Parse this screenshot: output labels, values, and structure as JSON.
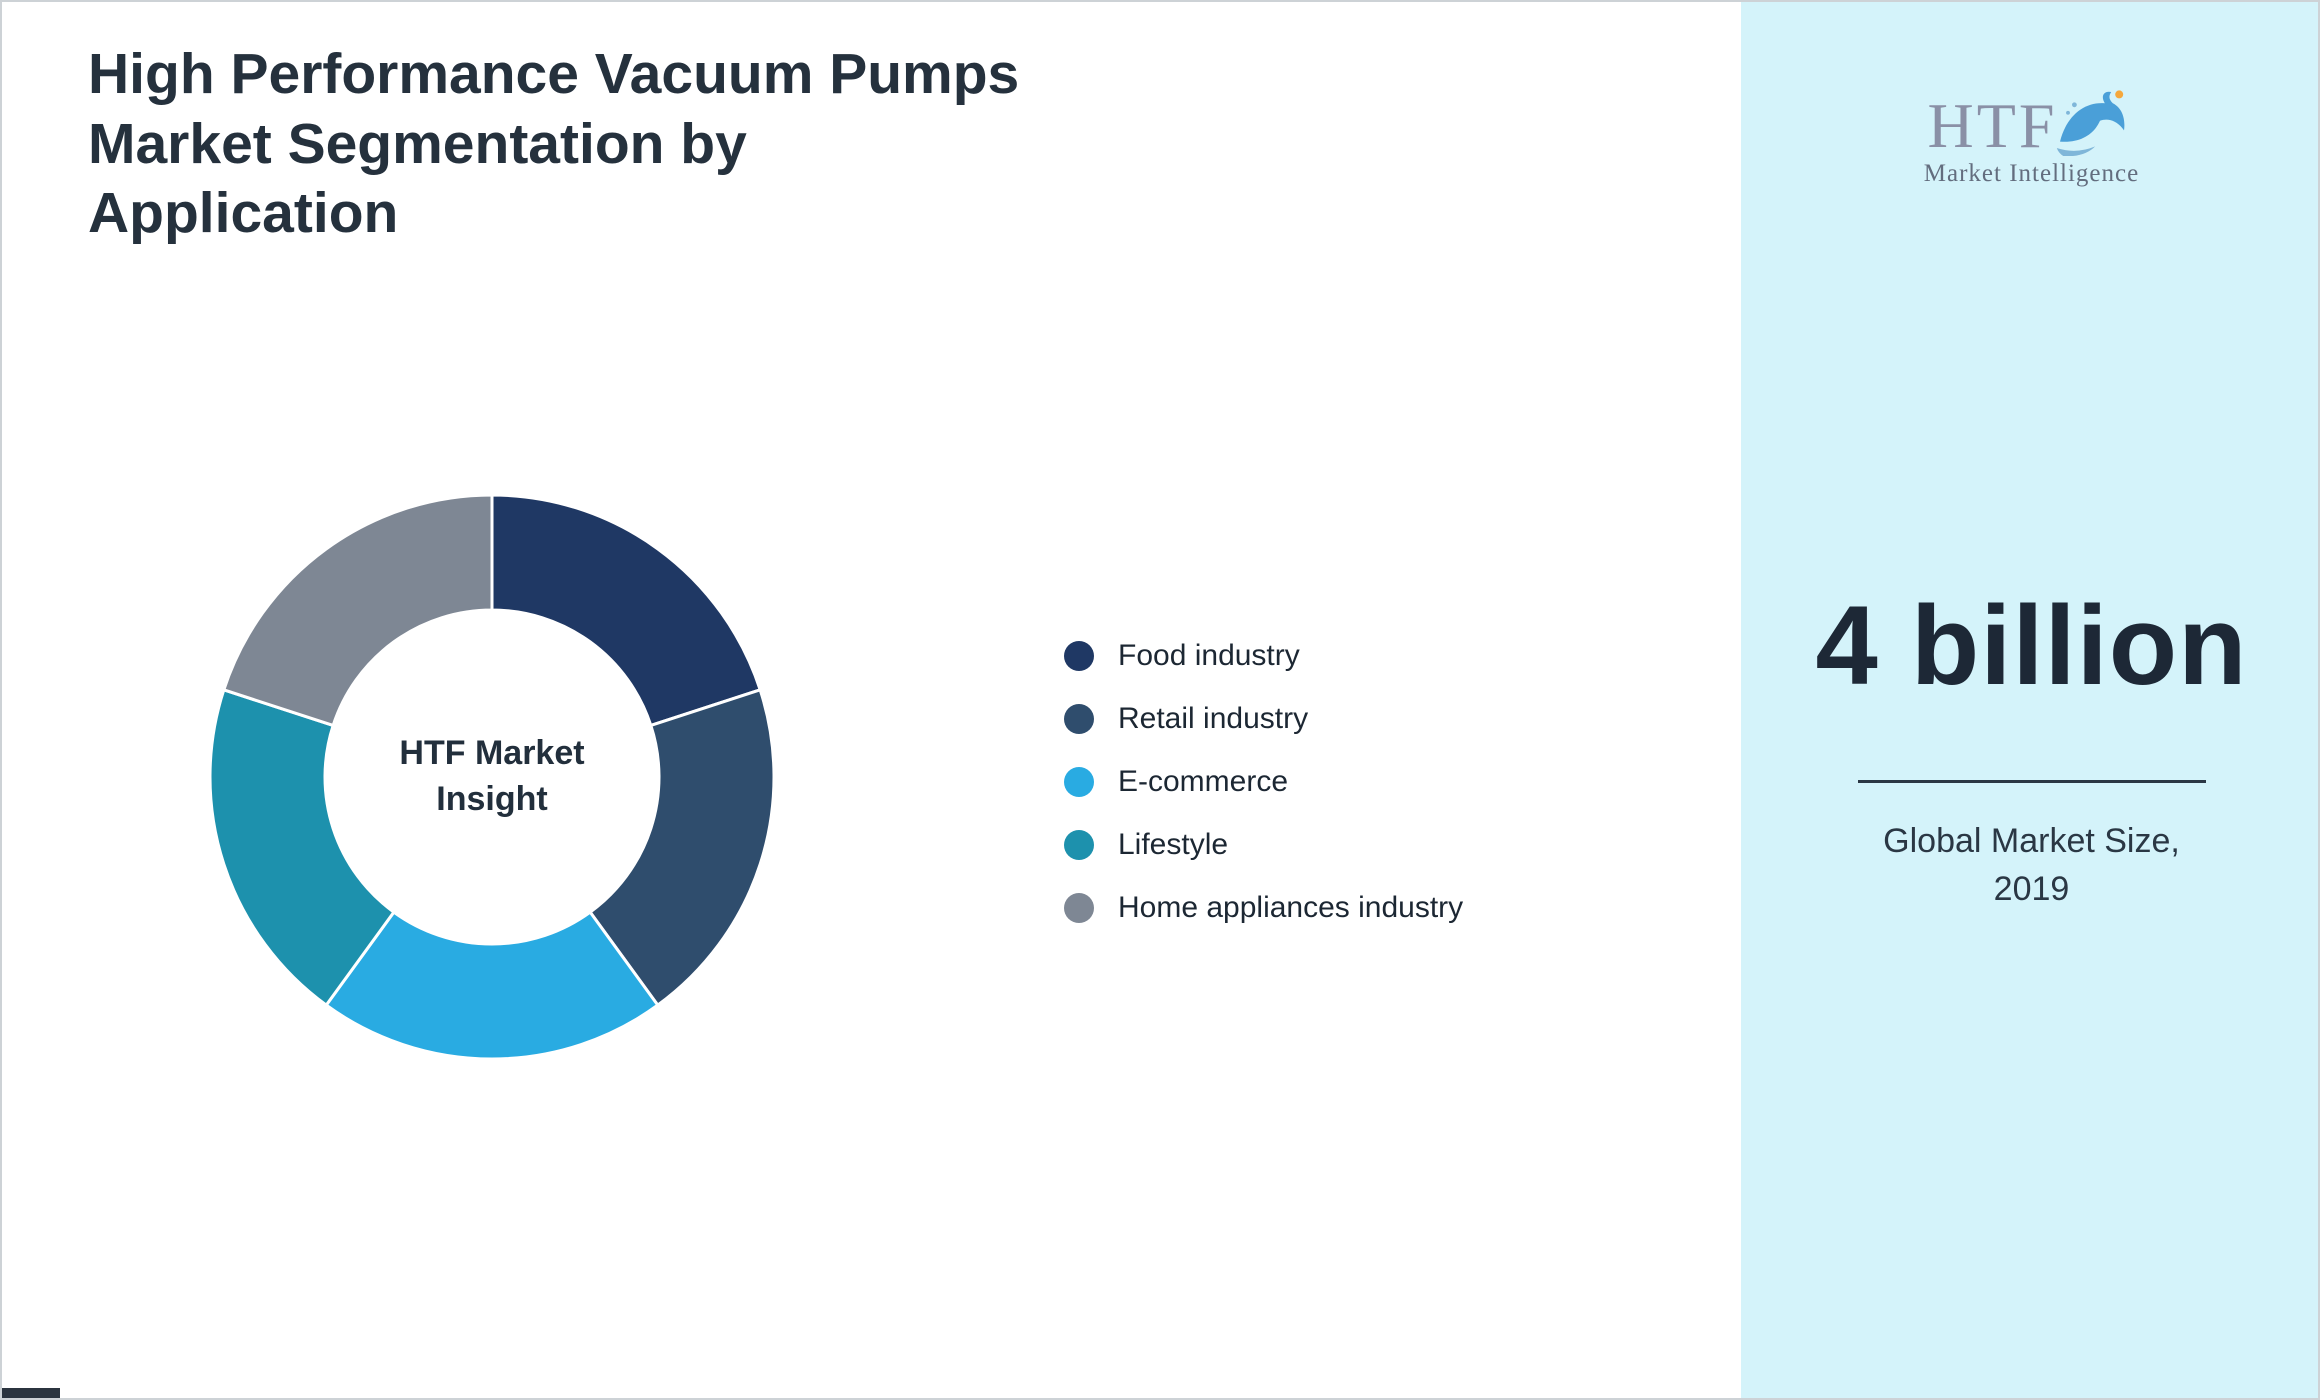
{
  "title": "High Performance Vacuum Pumps Market Segmentation by Application",
  "chart_data": {
    "type": "pie",
    "subtype": "donut",
    "title": "High Performance Vacuum Pumps Market Segmentation by Application",
    "center_label": "HTF Market Insight",
    "legend_position": "right",
    "start_angle_deg": 0,
    "direction": "clockwise",
    "segments": [
      {
        "label": "Food industry",
        "value": 20,
        "color": "#1f3864"
      },
      {
        "label": "Retail industry",
        "value": 20,
        "color": "#2f4d6d"
      },
      {
        "label": "E-commerce",
        "value": 20,
        "color": "#29abe2"
      },
      {
        "label": "Lifestyle",
        "value": 20,
        "color": "#1d91ad"
      },
      {
        "label": "Home appliances industry",
        "value": 20,
        "color": "#7e8794"
      }
    ]
  },
  "logo": {
    "text": "HTF",
    "subtext": "Market Intelligence"
  },
  "side_panel": {
    "market_size": "4 billion",
    "caption": "Global Market Size, 2019",
    "background": "#d4f3fa"
  },
  "colors": {
    "title_text": "#25313d",
    "panel_background": "#d4f3fa",
    "market_size_text": "#1d2836"
  }
}
